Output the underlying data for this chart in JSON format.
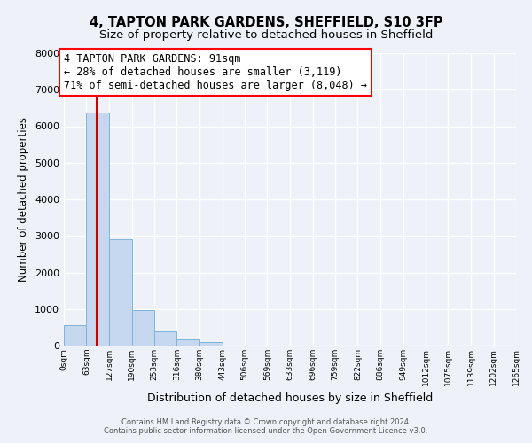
{
  "title": "4, TAPTON PARK GARDENS, SHEFFIELD, S10 3FP",
  "subtitle": "Size of property relative to detached houses in Sheffield",
  "xlabel": "Distribution of detached houses by size in Sheffield",
  "ylabel": "Number of detached properties",
  "bar_edges": [
    0,
    63,
    127,
    190,
    253,
    316,
    380,
    443,
    506,
    569,
    633,
    696,
    759,
    822,
    886,
    949,
    1012,
    1075,
    1139,
    1202,
    1265
  ],
  "bar_heights": [
    550,
    6370,
    2920,
    970,
    380,
    170,
    90,
    0,
    0,
    0,
    0,
    0,
    0,
    0,
    0,
    0,
    0,
    0,
    0,
    0
  ],
  "bar_color": "#c5d8f0",
  "bar_edgecolor": "#7fb4d8",
  "property_line_x": 91,
  "property_line_color": "#cc0000",
  "ylim": [
    0,
    8000
  ],
  "annotation_line1": "4 TAPTON PARK GARDENS: 91sqm",
  "annotation_line2": "← 28% of detached houses are smaller (3,119)",
  "annotation_line3": "71% of semi-detached houses are larger (8,048) →",
  "tick_labels": [
    "0sqm",
    "63sqm",
    "127sqm",
    "190sqm",
    "253sqm",
    "316sqm",
    "380sqm",
    "443sqm",
    "506sqm",
    "569sqm",
    "633sqm",
    "696sqm",
    "759sqm",
    "822sqm",
    "886sqm",
    "949sqm",
    "1012sqm",
    "1075sqm",
    "1139sqm",
    "1202sqm",
    "1265sqm"
  ],
  "footer_line1": "Contains HM Land Registry data © Crown copyright and database right 2024.",
  "footer_line2": "Contains public sector information licensed under the Open Government Licence v3.0.",
  "background_color": "#eef2f8",
  "grid_color": "#ffffff",
  "title_fontsize": 10.5,
  "subtitle_fontsize": 9.5,
  "ylabel_fontsize": 8.5,
  "xlabel_fontsize": 9,
  "annotation_fontsize": 8.5,
  "tick_fontsize": 6.5,
  "ytick_fontsize": 8
}
